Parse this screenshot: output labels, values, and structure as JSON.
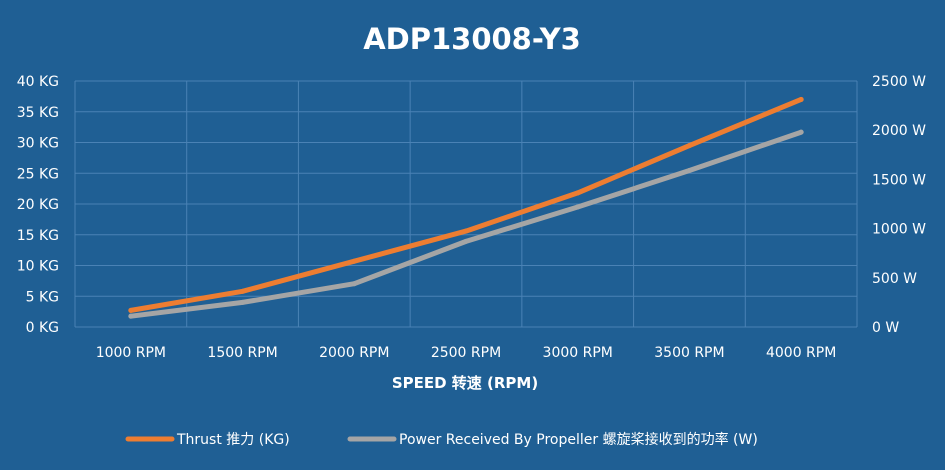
{
  "chart_data": {
    "type": "line",
    "title": "ADP13008-Y3",
    "xlabel": "SPEED 转速 (RPM)",
    "categories": [
      "1000 RPM",
      "1500 RPM",
      "2000 RPM",
      "2500 RPM",
      "3000 RPM",
      "3500 RPM",
      "4000 RPM"
    ],
    "y_left": {
      "ticks": [
        "0 KG",
        "5 KG",
        "10 KG",
        "15 KG",
        "20 KG",
        "25 KG",
        "30 KG",
        "35 KG",
        "40 KG"
      ],
      "range": [
        0,
        40
      ]
    },
    "y_right": {
      "ticks": [
        "0 W",
        "500 W",
        "1000 W",
        "1500 W",
        "2000 W",
        "2500 W"
      ],
      "range": [
        0,
        2500
      ]
    },
    "grid": true,
    "legend_position": "bottom",
    "series": [
      {
        "name": "Thrust 推力 (KG)",
        "axis": "left",
        "color": "#ed7d31",
        "values": [
          2.7,
          5.8,
          10.7,
          15.6,
          21.8,
          29.5,
          37.0
        ]
      },
      {
        "name": "Power Received By Propeller 螺旋桨接收到的功率 (W)",
        "axis": "right",
        "color": "#a5a5a5",
        "values": [
          110,
          250,
          440,
          870,
          1220,
          1590,
          1980
        ]
      }
    ]
  },
  "colors": {
    "background": "#1f5f94",
    "grid": "#4a82b5",
    "text": "#ffffff"
  }
}
